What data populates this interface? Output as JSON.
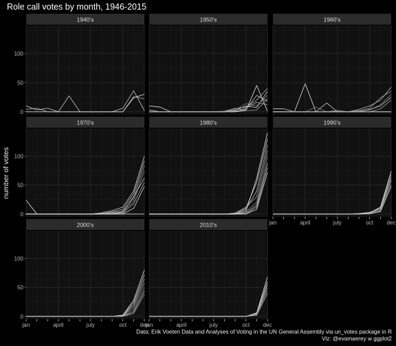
{
  "chart_data": {
    "type": "line",
    "title": "Role call votes by month, 1946-2015",
    "ylabel": "number of votes",
    "xlabel": "",
    "x_ticks": [
      "jan",
      "april",
      "july",
      "oct",
      "dec"
    ],
    "x_tick_months": [
      1,
      4,
      7,
      10,
      12
    ],
    "y_ticks": [
      0,
      50,
      100
    ],
    "ylim": [
      -5,
      148
    ],
    "xlim": [
      1,
      12
    ],
    "grid": true,
    "layout": "facet_wrap ncol 3, free x axes",
    "caption_lines": [
      "Data: Erik Voeten Data and Analyses of Voting in the UN General Assembly via un_votes package in R",
      "Viz: @evamaerey w ggplot2"
    ],
    "facets": [
      {
        "label": "1940's",
        "series": [
          {
            "values": [
              0,
              0,
              0,
              0,
              0,
              0,
              0,
              0,
              0,
              0,
              24,
              30
            ]
          },
          {
            "values": [
              10,
              3,
              6,
              0,
              27,
              0,
              0,
              0,
              0,
              6,
              36,
              2
            ]
          },
          {
            "values": [
              4,
              6,
              0,
              0,
              0,
              0,
              0,
              0,
              0,
              0,
              26,
              22
            ]
          }
        ]
      },
      {
        "label": "1950's",
        "series": [
          {
            "values": [
              10,
              8,
              0,
              0,
              0,
              0,
              0,
              0,
              0,
              2,
              45,
              1
            ]
          },
          {
            "values": [
              3,
              0,
              0,
              0,
              0,
              0,
              0,
              0,
              2,
              10,
              7,
              35
            ]
          },
          {
            "values": [
              0,
              0,
              0,
              0,
              0,
              0,
              0,
              0,
              5,
              8,
              20,
              40
            ]
          },
          {
            "values": [
              0,
              0,
              0,
              0,
              0,
              0,
              0,
              1,
              6,
              2,
              3,
              22
            ]
          },
          {
            "values": [
              0,
              0,
              0,
              0,
              0,
              0,
              0,
              0,
              3,
              14,
              10,
              28
            ]
          },
          {
            "values": [
              0,
              0,
              0,
              0,
              0,
              0,
              0,
              0,
              1,
              4,
              28,
              18
            ]
          },
          {
            "values": [
              0,
              0,
              0,
              0,
              0,
              0,
              0,
              0,
              0,
              6,
              16,
              12
            ]
          }
        ]
      },
      {
        "label": "1960's",
        "series": [
          {
            "values": [
              0,
              0,
              0,
              48,
              0,
              0,
              0,
              0,
              0,
              0,
              0,
              0
            ]
          },
          {
            "values": [
              5,
              5,
              0,
              0,
              0,
              15,
              0,
              0,
              0,
              0,
              0,
              0
            ]
          },
          {
            "values": [
              0,
              0,
              0,
              0,
              0,
              0,
              2,
              0,
              4,
              10,
              20,
              42
            ]
          },
          {
            "values": [
              0,
              0,
              0,
              0,
              0,
              0,
              0,
              0,
              2,
              6,
              24,
              35
            ]
          },
          {
            "values": [
              0,
              0,
              0,
              0,
              8,
              0,
              0,
              0,
              1,
              3,
              12,
              30
            ]
          },
          {
            "values": [
              0,
              0,
              0,
              0,
              0,
              0,
              0,
              0,
              0,
              4,
              10,
              25
            ]
          },
          {
            "values": [
              0,
              0,
              0,
              0,
              0,
              0,
              0,
              0,
              0,
              0,
              5,
              20
            ]
          }
        ]
      },
      {
        "label": "1970's",
        "series": [
          {
            "values": [
              24,
              0,
              0,
              0,
              0,
              0,
              0,
              0,
              0,
              0,
              0,
              0
            ]
          },
          {
            "values": [
              0,
              0,
              0,
              0,
              0,
              0,
              0,
              2,
              6,
              12,
              40,
              100
            ]
          },
          {
            "values": [
              0,
              0,
              0,
              0,
              0,
              0,
              0,
              1,
              4,
              8,
              35,
              92
            ]
          },
          {
            "values": [
              0,
              0,
              0,
              0,
              0,
              0,
              0,
              0,
              3,
              5,
              28,
              84
            ]
          },
          {
            "values": [
              0,
              0,
              0,
              0,
              0,
              0,
              0,
              0,
              2,
              4,
              22,
              75
            ]
          },
          {
            "values": [
              0,
              0,
              0,
              0,
              0,
              0,
              0,
              0,
              1,
              3,
              30,
              62
            ]
          },
          {
            "values": [
              0,
              0,
              0,
              0,
              0,
              0,
              0,
              0,
              0,
              2,
              18,
              55
            ]
          },
          {
            "values": [
              0,
              0,
              0,
              0,
              0,
              0,
              0,
              0,
              0,
              0,
              10,
              48
            ]
          }
        ]
      },
      {
        "label": "1980's",
        "series": [
          {
            "values": [
              0,
              0,
              0,
              0,
              0,
              0,
              0,
              0,
              0,
              5,
              62,
              140
            ]
          },
          {
            "values": [
              0,
              0,
              0,
              0,
              0,
              0,
              0,
              0,
              1,
              10,
              55,
              130
            ]
          },
          {
            "values": [
              0,
              0,
              0,
              0,
              0,
              0,
              0,
              0,
              0,
              8,
              40,
              120
            ]
          },
          {
            "values": [
              0,
              0,
              0,
              0,
              0,
              0,
              0,
              0,
              2,
              12,
              30,
              110
            ]
          },
          {
            "values": [
              0,
              0,
              0,
              0,
              0,
              0,
              0,
              0,
              0,
              4,
              20,
              100
            ]
          },
          {
            "values": [
              0,
              0,
              0,
              0,
              0,
              0,
              0,
              0,
              0,
              2,
              15,
              88
            ]
          },
          {
            "values": [
              0,
              0,
              0,
              0,
              0,
              0,
              0,
              0,
              0,
              0,
              12,
              80
            ]
          },
          {
            "values": [
              0,
              0,
              0,
              0,
              0,
              0,
              0,
              0,
              0,
              0,
              8,
              72
            ]
          }
        ]
      },
      {
        "label": "1990's",
        "series": [
          {
            "values": [
              0,
              0,
              0,
              0,
              0,
              0,
              0,
              0,
              0,
              2,
              12,
              74
            ]
          },
          {
            "values": [
              0,
              0,
              0,
              0,
              0,
              0,
              0,
              0,
              1,
              3,
              10,
              68
            ]
          },
          {
            "values": [
              0,
              0,
              0,
              0,
              0,
              0,
              0,
              0,
              0,
              2,
              8,
              62
            ]
          },
          {
            "values": [
              0,
              0,
              0,
              0,
              0,
              0,
              0,
              0,
              0,
              1,
              6,
              58
            ]
          },
          {
            "values": [
              0,
              0,
              0,
              0,
              0,
              0,
              0,
              0,
              0,
              0,
              5,
              52
            ]
          },
          {
            "values": [
              0,
              0,
              0,
              0,
              0,
              0,
              0,
              0,
              0,
              1,
              4,
              48
            ]
          }
        ]
      },
      {
        "label": "2000's",
        "series": [
          {
            "values": [
              0,
              0,
              0,
              0,
              0,
              0,
              0,
              0,
              0,
              2,
              28,
              80
            ]
          },
          {
            "values": [
              0,
              0,
              0,
              0,
              0,
              0,
              0,
              0,
              0,
              2,
              24,
              72
            ]
          },
          {
            "values": [
              0,
              0,
              0,
              0,
              0,
              0,
              0,
              0,
              0,
              1,
              20,
              65
            ]
          },
          {
            "values": [
              0,
              0,
              0,
              0,
              0,
              0,
              0,
              0,
              0,
              1,
              16,
              58
            ]
          },
          {
            "values": [
              0,
              0,
              0,
              0,
              0,
              0,
              0,
              0,
              0,
              0,
              12,
              50
            ]
          },
          {
            "values": [
              0,
              0,
              0,
              0,
              0,
              0,
              0,
              0,
              0,
              0,
              8,
              44
            ]
          },
          {
            "values": [
              0,
              0,
              0,
              0,
              0,
              0,
              0,
              0,
              0,
              0,
              5,
              38
            ]
          }
        ]
      },
      {
        "label": "2010's",
        "series": [
          {
            "values": [
              0,
              0,
              0,
              0,
              0,
              0,
              0,
              0,
              0,
              0,
              6,
              68
            ]
          },
          {
            "values": [
              0,
              0,
              0,
              0,
              0,
              0,
              0,
              0,
              0,
              0,
              5,
              60
            ]
          },
          {
            "values": [
              0,
              0,
              0,
              0,
              0,
              0,
              0,
              0,
              0,
              0,
              4,
              55
            ]
          },
          {
            "values": [
              0,
              0,
              0,
              0,
              0,
              0,
              0,
              0,
              0,
              0,
              3,
              50
            ]
          },
          {
            "values": [
              0,
              0,
              0,
              0,
              0,
              0,
              0,
              0,
              0,
              0,
              4,
              45
            ]
          },
          {
            "values": [
              0,
              0,
              0,
              0,
              0,
              0,
              0,
              0,
              0,
              0,
              2,
              40
            ]
          }
        ]
      }
    ]
  },
  "colors": {
    "background": "#000000",
    "panel": "#111111",
    "strip": "#2b2b2b",
    "line": "#dddddd"
  }
}
